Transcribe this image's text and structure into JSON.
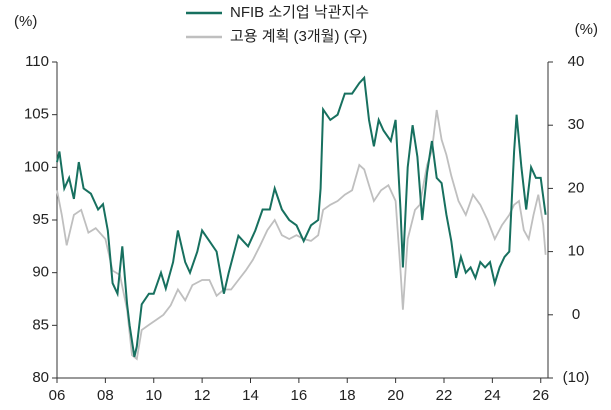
{
  "chart_data": {
    "type": "line",
    "y_label": "(%)",
    "y2_label": "(%)",
    "xlim": [
      2006,
      2026.3
    ],
    "xticks": [
      {
        "value": 2006,
        "label": "06"
      },
      {
        "value": 2008,
        "label": "08"
      },
      {
        "value": 2010,
        "label": "10"
      },
      {
        "value": 2012,
        "label": "12"
      },
      {
        "value": 2014,
        "label": "14"
      },
      {
        "value": 2016,
        "label": "16"
      },
      {
        "value": 2018,
        "label": "18"
      },
      {
        "value": 2020,
        "label": "20"
      },
      {
        "value": 2022,
        "label": "22"
      },
      {
        "value": 2024,
        "label": "24"
      },
      {
        "value": 2026,
        "label": "26"
      }
    ],
    "ylim": [
      80,
      110
    ],
    "yticks": [
      80,
      85,
      90,
      95,
      100,
      105,
      110
    ],
    "y2lim": [
      -10,
      40
    ],
    "y2ticks": [
      {
        "value": -10,
        "label": "(10)"
      },
      0,
      10,
      20,
      30,
      40
    ],
    "series": [
      {
        "name": "NFIB 소기업 낙관지수",
        "color": "#17705f",
        "x": [
          2006,
          2006.1,
          2006.3,
          2006.5,
          2006.7,
          2006.9,
          2007.1,
          2007.4,
          2007.7,
          2007.9,
          2008.1,
          2008.3,
          2008.5,
          2008.7,
          2008.9,
          2009.0,
          2009.2,
          2009.3,
          2009.5,
          2009.8,
          2010.0,
          2010.3,
          2010.5,
          2010.8,
          2011.0,
          2011.3,
          2011.5,
          2011.8,
          2012.0,
          2012.3,
          2012.6,
          2012.9,
          2013.1,
          2013.5,
          2013.7,
          2013.9,
          2014.2,
          2014.5,
          2014.8,
          2015.0,
          2015.3,
          2015.6,
          2015.9,
          2016.2,
          2016.5,
          2016.8,
          2016.9,
          2017.0,
          2017.3,
          2017.6,
          2017.9,
          2018.2,
          2018.5,
          2018.7,
          2018.9,
          2019.1,
          2019.3,
          2019.5,
          2019.8,
          2020.0,
          2020.2,
          2020.3,
          2020.5,
          2020.7,
          2020.9,
          2021.1,
          2021.3,
          2021.5,
          2021.7,
          2021.9,
          2022.1,
          2022.3,
          2022.5,
          2022.7,
          2022.9,
          2023.1,
          2023.3,
          2023.5,
          2023.7,
          2023.9,
          2024.1,
          2024.3,
          2024.5,
          2024.7,
          2024.9,
          2025.0,
          2025.2,
          2025.4,
          2025.6,
          2025.8,
          2026.0,
          2026.2
        ],
        "values": [
          100.5,
          101.5,
          98,
          99,
          97,
          100.5,
          98,
          97.5,
          96,
          96.5,
          94,
          89,
          88,
          92.5,
          87,
          85,
          82,
          83,
          87,
          88,
          88,
          90,
          88.5,
          91,
          94,
          91,
          90,
          92,
          94,
          93,
          92,
          88,
          90,
          93.5,
          93,
          92.5,
          94,
          96,
          96,
          98,
          96,
          95,
          94.5,
          93,
          94.5,
          95,
          98,
          105.5,
          104.5,
          105,
          107,
          107,
          108,
          108.5,
          104.5,
          102,
          104.5,
          103.5,
          102.5,
          104.5,
          96,
          90.5,
          100,
          104,
          101,
          95,
          99.5,
          102.5,
          99,
          98.5,
          95.5,
          93,
          89.5,
          91.5,
          90,
          90.5,
          89.5,
          91,
          90.5,
          91,
          89,
          90.5,
          91.5,
          92,
          101.5,
          105,
          100,
          96,
          100,
          99,
          99,
          95.5
        ]
      },
      {
        "name": "고용 계획 (3개월) (우)",
        "color": "#bfbfbf",
        "axis": "y2",
        "x": [
          2006,
          2006.2,
          2006.4,
          2006.7,
          2007.0,
          2007.3,
          2007.6,
          2008.0,
          2008.3,
          2008.6,
          2008.9,
          2009.1,
          2009.3,
          2009.5,
          2009.8,
          2010.1,
          2010.4,
          2010.7,
          2011.0,
          2011.3,
          2011.6,
          2012.0,
          2012.3,
          2012.6,
          2012.9,
          2013.2,
          2013.5,
          2013.8,
          2014.1,
          2014.4,
          2014.7,
          2015.0,
          2015.3,
          2015.6,
          2015.9,
          2016.2,
          2016.5,
          2016.8,
          2017.0,
          2017.3,
          2017.6,
          2017.9,
          2018.2,
          2018.5,
          2018.7,
          2018.9,
          2019.1,
          2019.4,
          2019.7,
          2020.0,
          2020.2,
          2020.3,
          2020.5,
          2020.8,
          2021.0,
          2021.3,
          2021.5,
          2021.7,
          2021.9,
          2022.1,
          2022.3,
          2022.6,
          2022.9,
          2023.2,
          2023.5,
          2023.8,
          2024.1,
          2024.4,
          2024.7,
          2024.9,
          2025.1,
          2025.3,
          2025.5,
          2025.7,
          2025.9,
          2026.1,
          2026.2
        ],
        "values": [
          19.7,
          15.8,
          11,
          15.8,
          16.6,
          13,
          13.7,
          12,
          7,
          6.3,
          0.8,
          -6.4,
          -7,
          -2.4,
          -1.6,
          -0.8,
          0,
          1.5,
          4,
          2.3,
          4.7,
          5.5,
          5.5,
          3,
          4,
          4,
          5.5,
          7,
          8.7,
          11,
          13.4,
          15,
          12.6,
          12,
          12.6,
          12,
          11.7,
          12.6,
          16.6,
          17.4,
          18,
          19,
          19.7,
          23.7,
          23,
          20.5,
          18,
          19.7,
          20.5,
          18,
          7,
          0.8,
          12,
          16.6,
          17.4,
          23.7,
          26,
          32.4,
          27.7,
          25.3,
          22,
          18,
          15.8,
          19,
          17.4,
          15,
          12,
          14.2,
          15.8,
          17.4,
          18,
          13.4,
          12,
          15.8,
          19,
          14.2,
          9.5
        ]
      }
    ]
  }
}
